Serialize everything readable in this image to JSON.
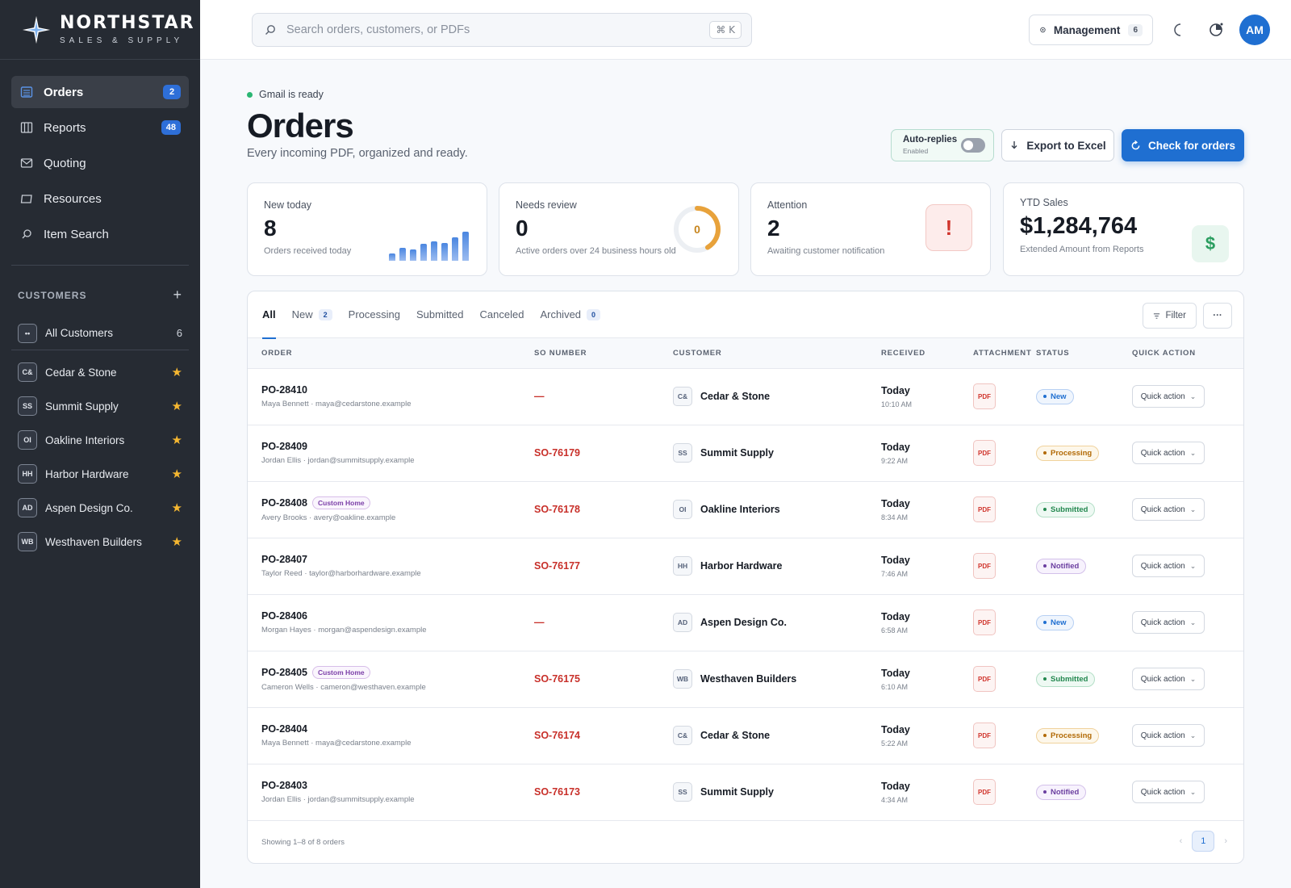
{
  "brand": {
    "name": "NORTHSTAR",
    "tagline": "SALES & SUPPLY"
  },
  "nav": [
    {
      "label": "Orders",
      "badge": "2",
      "icon": "list-icon",
      "active": true
    },
    {
      "label": "Reports",
      "badge": "48",
      "icon": "columns-icon",
      "active": false
    },
    {
      "label": "Quoting",
      "badge": "",
      "icon": "mail-icon",
      "active": false
    },
    {
      "label": "Resources",
      "badge": "",
      "icon": "folder-icon",
      "active": false
    },
    {
      "label": "Item Search",
      "badge": "",
      "icon": "search-icon",
      "active": false
    }
  ],
  "customers_section": {
    "title": "CUSTOMERS",
    "add": "+",
    "all": {
      "initials": "••",
      "label": "All Customers",
      "count": "6"
    },
    "items": [
      {
        "initials": "C&",
        "label": "Cedar & Stone",
        "star": "★"
      },
      {
        "initials": "SS",
        "label": "Summit Supply",
        "star": "★"
      },
      {
        "initials": "OI",
        "label": "Oakline Interiors",
        "star": "★"
      },
      {
        "initials": "HH",
        "label": "Harbor Hardware",
        "star": "★"
      },
      {
        "initials": "AD",
        "label": "Aspen Design Co.",
        "star": "★"
      },
      {
        "initials": "WB",
        "label": "Westhaven Builders",
        "star": "★"
      }
    ]
  },
  "topbar": {
    "search_placeholder": "Search orders, customers, or PDFs",
    "shortcut": "⌘ K",
    "management_label": "Management",
    "management_count": "6",
    "avatar_initials": "AM"
  },
  "header": {
    "gmail_status": "Gmail is ready",
    "title": "Orders",
    "subtitle": "Every incoming PDF, organized and ready.",
    "autoreplies_label": "Auto-replies",
    "autoreplies_state": "Enabled",
    "export_label": "Export to Excel",
    "check_label": "Check for orders"
  },
  "stats": {
    "new_today": {
      "label": "New today",
      "value": "8",
      "sub": "Orders received today",
      "bars": [
        0.22,
        0.4,
        0.35,
        0.52,
        0.6,
        0.55,
        0.72,
        0.9
      ]
    },
    "needs_review": {
      "label": "Needs review",
      "value": "0",
      "sub": "Active orders over 24 business hours old",
      "ring_value": "0"
    },
    "attention": {
      "label": "Attention",
      "value": "2",
      "sub": "Awaiting customer notification",
      "icon_text": "!"
    },
    "ytd": {
      "label": "YTD Sales",
      "value": "$1,284,764",
      "sub": "Extended Amount from Reports",
      "icon_text": "$"
    }
  },
  "tabs": [
    {
      "label": "All",
      "badge": "",
      "active": true
    },
    {
      "label": "New",
      "badge": "2",
      "active": false
    },
    {
      "label": "Processing",
      "badge": "",
      "active": false
    },
    {
      "label": "Submitted",
      "badge": "",
      "active": false
    },
    {
      "label": "Canceled",
      "badge": "",
      "active": false
    },
    {
      "label": "Archived",
      "badge": "0",
      "active": false
    }
  ],
  "table_actions": {
    "filter": "Filter",
    "more": "···"
  },
  "columns": [
    "ORDER",
    "SO NUMBER",
    "CUSTOMER",
    "RECEIVED",
    "ATTACHMENT",
    "STATUS",
    "QUICK ACTION"
  ],
  "orders": [
    {
      "po": "PO-28410",
      "tag": "",
      "contact": "Maya Bennett · maya@cedarstone.example",
      "so": "—",
      "cust_initials": "C&",
      "customer": "Cedar & Stone",
      "day": "Today",
      "time": "10:10 AM",
      "attachment": "PDF",
      "status": "New",
      "action": "Quick action"
    },
    {
      "po": "PO-28409",
      "tag": "",
      "contact": "Jordan Ellis · jordan@summitsupply.example",
      "so": "SO-76179",
      "cust_initials": "SS",
      "customer": "Summit Supply",
      "day": "Today",
      "time": "9:22 AM",
      "attachment": "PDF",
      "status": "Processing",
      "action": "Quick action"
    },
    {
      "po": "PO-28408",
      "tag": "Custom Home",
      "contact": "Avery Brooks · avery@oakline.example",
      "so": "SO-76178",
      "cust_initials": "OI",
      "customer": "Oakline Interiors",
      "day": "Today",
      "time": "8:34 AM",
      "attachment": "PDF",
      "status": "Submitted",
      "action": "Quick action"
    },
    {
      "po": "PO-28407",
      "tag": "",
      "contact": "Taylor Reed · taylor@harborhardware.example",
      "so": "SO-76177",
      "cust_initials": "HH",
      "customer": "Harbor Hardware",
      "day": "Today",
      "time": "7:46 AM",
      "attachment": "PDF",
      "status": "Notified",
      "action": "Quick action"
    },
    {
      "po": "PO-28406",
      "tag": "",
      "contact": "Morgan Hayes · morgan@aspendesign.example",
      "so": "—",
      "cust_initials": "AD",
      "customer": "Aspen Design Co.",
      "day": "Today",
      "time": "6:58 AM",
      "attachment": "PDF",
      "status": "New",
      "action": "Quick action"
    },
    {
      "po": "PO-28405",
      "tag": "Custom Home",
      "contact": "Cameron Wells · cameron@westhaven.example",
      "so": "SO-76175",
      "cust_initials": "WB",
      "customer": "Westhaven Builders",
      "day": "Today",
      "time": "6:10 AM",
      "attachment": "PDF",
      "status": "Submitted",
      "action": "Quick action"
    },
    {
      "po": "PO-28404",
      "tag": "",
      "contact": "Maya Bennett · maya@cedarstone.example",
      "so": "SO-76174",
      "cust_initials": "C&",
      "customer": "Cedar & Stone",
      "day": "Today",
      "time": "5:22 AM",
      "attachment": "PDF",
      "status": "Processing",
      "action": "Quick action"
    },
    {
      "po": "PO-28403",
      "tag": "",
      "contact": "Jordan Ellis · jordan@summitsupply.example",
      "so": "SO-76173",
      "cust_initials": "SS",
      "customer": "Summit Supply",
      "day": "Today",
      "time": "4:34 AM",
      "attachment": "PDF",
      "status": "Notified",
      "action": "Quick action"
    }
  ],
  "footer": {
    "showing": "Showing 1–8 of 8 orders",
    "page": "1",
    "prev": "‹",
    "next": "›"
  },
  "colors": {
    "accent": "#1f6fd1",
    "sidebar": "#262b33",
    "so_red": "#c8302a",
    "star": "#f5b731"
  }
}
